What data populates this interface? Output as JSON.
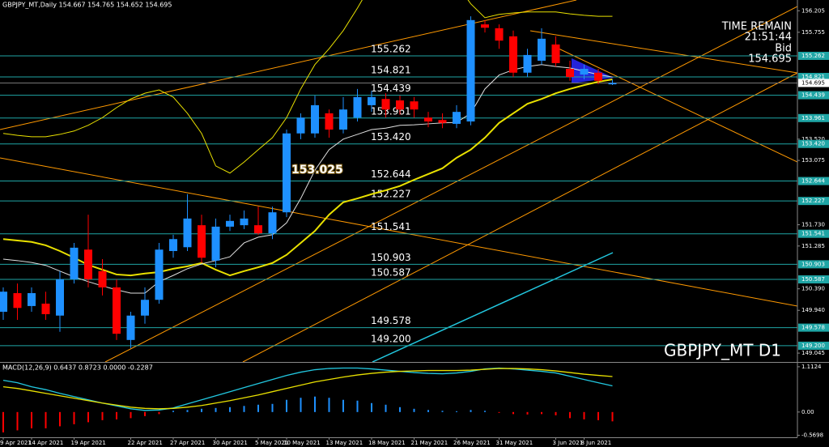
{
  "chart_data": [
    {
      "type": "candlestick",
      "title": "GBPJPY_MT,Daily 154.667 154.765 154.652 154.695",
      "symbol_label": "GBPJPY_MT D1",
      "timer_title": "TIME REMAIN",
      "timer": "21:51:44",
      "bid_title": "Bid",
      "bid": 154.695,
      "categories": [
        "9 Apr 2021",
        null,
        "14 Apr 2021",
        null,
        null,
        "19 Apr 2021",
        null,
        null,
        null,
        "22 Apr 2021",
        null,
        null,
        "27 Apr 2021",
        null,
        null,
        "30 Apr 2021",
        null,
        null,
        "5 May 2021",
        null,
        "10 May 2021",
        null,
        null,
        "13 May 2021",
        null,
        null,
        "18 May 2021",
        null,
        null,
        "21 May 2021",
        null,
        null,
        "26 May 2021",
        null,
        null,
        "31 May 2021",
        null,
        null,
        null,
        "3 Jun 2021",
        null,
        "8 Jun 2021",
        null,
        null
      ],
      "open": [
        149.91,
        150.3,
        150.03,
        150.08,
        149.83,
        150.59,
        151.21,
        150.76,
        150.42,
        149.32,
        149.83,
        150.16,
        151.18,
        151.26,
        151.72,
        150.98,
        151.69,
        151.72,
        151.72,
        151.55,
        151.99,
        153.64,
        153.64,
        154.06,
        153.72,
        153.97,
        154.23,
        154.36,
        154.33,
        154.31,
        153.97,
        153.92,
        153.84,
        153.89,
        155.92,
        155.84,
        155.67,
        154.91,
        155.16,
        155.5,
        154.99,
        154.87,
        154.91,
        154.667
      ],
      "high": [
        150.42,
        150.5,
        150.42,
        150.33,
        150.76,
        151.35,
        151.94,
        151.01,
        150.59,
        149.91,
        150.42,
        151.35,
        151.52,
        152.37,
        151.94,
        151.86,
        151.94,
        152.03,
        152.11,
        152.11,
        153.72,
        154.06,
        154.43,
        154.14,
        154.4,
        154.57,
        154.53,
        154.48,
        154.43,
        154.4,
        154.09,
        154.06,
        154.23,
        156.09,
        156.01,
        155.92,
        155.79,
        155.41,
        155.84,
        155.67,
        155.16,
        155.08,
        154.99,
        154.765
      ],
      "low": [
        149.74,
        149.74,
        149.91,
        149.74,
        149.49,
        150.5,
        150.42,
        150.25,
        149.32,
        149.15,
        149.66,
        150.08,
        151.04,
        151.18,
        150.93,
        150.84,
        151.6,
        151.64,
        151.52,
        151.43,
        151.89,
        153.52,
        153.55,
        153.55,
        153.64,
        153.89,
        154.09,
        153.97,
        154.03,
        153.97,
        153.77,
        153.75,
        153.75,
        153.81,
        155.75,
        155.41,
        154.82,
        154.82,
        155.08,
        155.04,
        154.74,
        154.77,
        154.67,
        154.652
      ],
      "close": [
        150.33,
        149.99,
        150.3,
        149.86,
        150.59,
        151.25,
        150.59,
        150.42,
        149.45,
        149.83,
        150.16,
        151.21,
        151.43,
        151.86,
        151.04,
        151.69,
        151.81,
        151.86,
        151.55,
        151.99,
        153.64,
        153.97,
        154.23,
        153.72,
        154.14,
        154.4,
        154.4,
        154.14,
        154.14,
        154.14,
        153.89,
        153.86,
        154.09,
        156.01,
        155.85,
        155.58,
        154.91,
        155.28,
        155.62,
        155.11,
        154.82,
        154.99,
        154.74,
        154.695
      ],
      "up_color": "#1e90ff",
      "down_color": "#ff0000",
      "overlays": [
        {
          "color": "#e8e000",
          "width": 1,
          "values": [
            153.64,
            153.6,
            153.57,
            153.57,
            153.62,
            153.69,
            153.81,
            153.97,
            154.18,
            154.36,
            154.48,
            154.55,
            154.4,
            154.06,
            153.64,
            152.96,
            152.81,
            153.04,
            153.3,
            153.55,
            153.97,
            154.57,
            155.08,
            155.41,
            155.79,
            156.26,
            156.77,
            156.94,
            157.02,
            157.11,
            157.11,
            157.02,
            156.77,
            156.35,
            156.06,
            156.13,
            156.16,
            156.18,
            156.18,
            156.18,
            156.14,
            156.11,
            156.09,
            156.09
          ]
        },
        {
          "color": "#e8e000",
          "width": 2,
          "values": [
            151.43,
            151.4,
            151.37,
            151.3,
            151.18,
            151.04,
            150.89,
            150.79,
            150.69,
            150.67,
            150.71,
            150.74,
            150.81,
            150.86,
            150.93,
            150.79,
            150.67,
            150.76,
            150.84,
            150.93,
            151.1,
            151.35,
            151.6,
            151.94,
            152.2,
            152.28,
            152.37,
            152.45,
            152.54,
            152.67,
            152.79,
            152.91,
            153.13,
            153.3,
            153.55,
            153.86,
            154.06,
            154.26,
            154.36,
            154.48,
            154.57,
            154.65,
            154.72,
            154.77
          ]
        },
        {
          "color": "#e0e0e0",
          "width": 1,
          "values": [
            151.01,
            150.98,
            150.94,
            150.88,
            150.76,
            150.64,
            150.54,
            150.45,
            150.37,
            150.3,
            150.3,
            150.54,
            150.67,
            150.81,
            150.91,
            150.98,
            151.06,
            151.35,
            151.47,
            151.52,
            151.77,
            152.28,
            152.87,
            153.3,
            153.52,
            153.62,
            153.72,
            153.75,
            153.81,
            153.82,
            153.84,
            153.86,
            153.87,
            154.06,
            154.57,
            154.86,
            154.97,
            155.04,
            155.08,
            155.04,
            155.01,
            154.94,
            154.87,
            154.82
          ]
        }
      ],
      "levels": [
        155.262,
        154.821,
        154.439,
        153.961,
        {
          "value": 153.42,
          "label": "153.420"
        },
        152.644,
        152.227,
        151.541,
        150.903,
        150.587,
        149.578,
        {
          "value": 149.2,
          "label": "149.200"
        }
      ],
      "level_color": "#1fa5a5",
      "highlight_level": 153.025,
      "ylim": [
        148.86,
        156.43
      ],
      "yticks": [
        156.205,
        155.755,
        {
          "value": 153.52,
          "label": "153.520"
        },
        153.075,
        {
          "value": 151.73,
          "label": "151.730"
        },
        151.285,
        {
          "value": 150.39,
          "label": "150.390"
        },
        {
          "value": 149.94,
          "label": "149.940"
        },
        149.045
      ]
    },
    {
      "type": "macd",
      "title": "MACD(12,26,9) 0.6437 0.8723 0.0000 -0.2287",
      "histogram": [
        -0.5,
        -0.45,
        -0.4,
        -0.4,
        -0.35,
        -0.3,
        -0.25,
        -0.2,
        -0.18,
        -0.15,
        -0.1,
        -0.05,
        0.03,
        0.05,
        0.08,
        0.1,
        0.12,
        0.15,
        0.18,
        0.2,
        0.3,
        0.35,
        0.38,
        0.35,
        0.3,
        0.28,
        0.22,
        0.18,
        0.12,
        0.08,
        0.05,
        0.03,
        0.02,
        0.05,
        0.03,
        -0.02,
        -0.05,
        -0.06,
        -0.05,
        -0.08,
        -0.15,
        -0.18,
        -0.2,
        -0.2287
      ],
      "pos_color": "#1e90ff",
      "neg_color": "#ff0000",
      "series": [
        {
          "color": "#22c8e0",
          "values": [
            0.78,
            0.72,
            0.62,
            0.55,
            0.46,
            0.38,
            0.3,
            0.22,
            0.15,
            0.08,
            0.04,
            0.05,
            0.1,
            0.2,
            0.3,
            0.4,
            0.5,
            0.6,
            0.7,
            0.8,
            0.9,
            0.98,
            1.04,
            1.07,
            1.08,
            1.08,
            1.06,
            1.03,
            1.0,
            0.97,
            0.95,
            0.94,
            0.96,
            1.0,
            1.06,
            1.08,
            1.06,
            1.03,
            1.0,
            0.96,
            0.88,
            0.8,
            0.72,
            0.6437
          ]
        },
        {
          "color": "#e8e000",
          "values": [
            0.62,
            0.58,
            0.52,
            0.46,
            0.4,
            0.34,
            0.28,
            0.22,
            0.17,
            0.12,
            0.09,
            0.08,
            0.09,
            0.12,
            0.16,
            0.22,
            0.28,
            0.35,
            0.42,
            0.5,
            0.58,
            0.66,
            0.74,
            0.8,
            0.86,
            0.91,
            0.95,
            0.98,
            1.0,
            1.01,
            1.02,
            1.02,
            1.02,
            1.03,
            1.05,
            1.07,
            1.07,
            1.06,
            1.04,
            1.01,
            0.97,
            0.93,
            0.9,
            0.8723
          ]
        }
      ],
      "ylim": [
        -0.62,
        1.21
      ],
      "yticks": [
        1.1124,
        {
          "value": 0,
          "label": "0.00"
        },
        -0.5698
      ]
    }
  ]
}
